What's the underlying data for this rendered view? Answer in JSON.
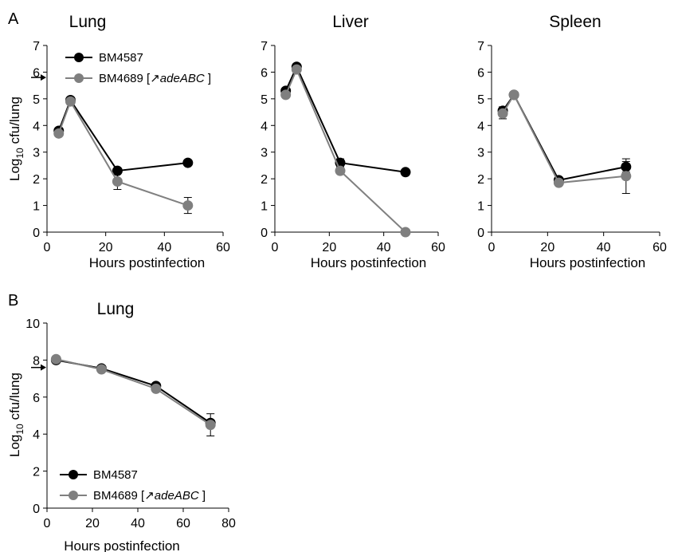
{
  "panels": {
    "A": "A",
    "B": "B"
  },
  "colors": {
    "series_1": "#000000",
    "series_2": "#808080",
    "marker_1": "#000000",
    "marker_2": "#7f7f7f",
    "arrow": "#000000"
  },
  "chart_data": [
    {
      "type": "line",
      "panel": "A",
      "title": "Lung",
      "xlabel": "Hours postinfection",
      "ylabel": "Log10 cfu/lung",
      "xlim": [
        0,
        60
      ],
      "ylim": [
        0,
        7
      ],
      "xticks": [
        "0",
        "20",
        "40",
        "60"
      ],
      "yticks": [
        "0",
        "1",
        "2",
        "3",
        "4",
        "5",
        "6",
        "7"
      ],
      "inoculum_arrow_y": 5.8,
      "legend": true,
      "series": [
        {
          "name": "BM4587",
          "name_suffix": "",
          "x": [
            4,
            8,
            24,
            48
          ],
          "y": [
            3.8,
            4.95,
            2.3,
            2.6
          ],
          "err": [
            0.1,
            0.1,
            0.1,
            0.05
          ]
        },
        {
          "name": "BM4689 [",
          "name_italic": "↗adeABC",
          "name_suffix": " ]",
          "x": [
            4,
            8,
            24,
            48
          ],
          "y": [
            3.7,
            4.9,
            1.9,
            1.0
          ],
          "err": [
            0.1,
            0.1,
            0.3,
            0.3
          ]
        }
      ]
    },
    {
      "type": "line",
      "panel": "",
      "title": "Liver",
      "xlabel": "Hours postinfection",
      "ylabel": "",
      "xlim": [
        0,
        60
      ],
      "ylim": [
        0,
        7
      ],
      "xticks": [
        "0",
        "20",
        "40",
        "60"
      ],
      "yticks": [
        "0",
        "1",
        "2",
        "3",
        "4",
        "5",
        "6",
        "7"
      ],
      "legend": false,
      "series": [
        {
          "name": "BM4587",
          "x": [
            4,
            8,
            24,
            48
          ],
          "y": [
            5.3,
            6.2,
            2.6,
            2.25
          ],
          "err": [
            0.1,
            0.1,
            0.15,
            0.05
          ]
        },
        {
          "name": "BM4689 [↗adeABC ]",
          "x": [
            4,
            8,
            24,
            48
          ],
          "y": [
            5.15,
            6.1,
            2.3,
            0.0
          ],
          "err": [
            0.1,
            0.1,
            0.1,
            0.0
          ]
        }
      ]
    },
    {
      "type": "line",
      "panel": "",
      "title": "Spleen",
      "xlabel": "Hours postinfection",
      "ylabel": "",
      "xlim": [
        0,
        60
      ],
      "ylim": [
        0,
        7
      ],
      "xticks": [
        "0",
        "20",
        "40",
        "60"
      ],
      "yticks": [
        "0",
        "1",
        "2",
        "3",
        "4",
        "5",
        "6",
        "7"
      ],
      "legend": false,
      "series": [
        {
          "name": "BM4587",
          "x": [
            4,
            8,
            24,
            48
          ],
          "y": [
            4.55,
            5.15,
            1.95,
            2.45
          ],
          "err": [
            0.15,
            0.1,
            0.1,
            0.2
          ]
        },
        {
          "name": "BM4689 [↗adeABC ]",
          "x": [
            4,
            8,
            24,
            48
          ],
          "y": [
            4.45,
            5.15,
            1.85,
            2.1
          ],
          "err": [
            0.2,
            0.1,
            0.1,
            0.65
          ]
        }
      ]
    },
    {
      "type": "line",
      "panel": "B",
      "title": "Lung",
      "xlabel": "Hours postinfection",
      "ylabel": "Log10 cfu/lung",
      "xlim": [
        0,
        80
      ],
      "ylim": [
        0,
        10
      ],
      "xticks": [
        "0",
        "20",
        "40",
        "60",
        "80"
      ],
      "yticks": [
        "0",
        "2",
        "4",
        "6",
        "8",
        "10"
      ],
      "inoculum_arrow_y": 7.6,
      "legend": true,
      "series": [
        {
          "name": "BM4587",
          "name_suffix": "",
          "x": [
            4,
            24,
            48,
            72
          ],
          "y": [
            8.0,
            7.55,
            6.6,
            4.6
          ],
          "err": [
            0.1,
            0.1,
            0.1,
            0.1
          ]
        },
        {
          "name": "BM4689 [",
          "name_italic": "↗adeABC",
          "name_suffix": " ]",
          "x": [
            4,
            24,
            48,
            72
          ],
          "y": [
            8.05,
            7.5,
            6.45,
            4.5
          ],
          "err": [
            0.1,
            0.1,
            0.1,
            0.6
          ]
        }
      ]
    }
  ]
}
